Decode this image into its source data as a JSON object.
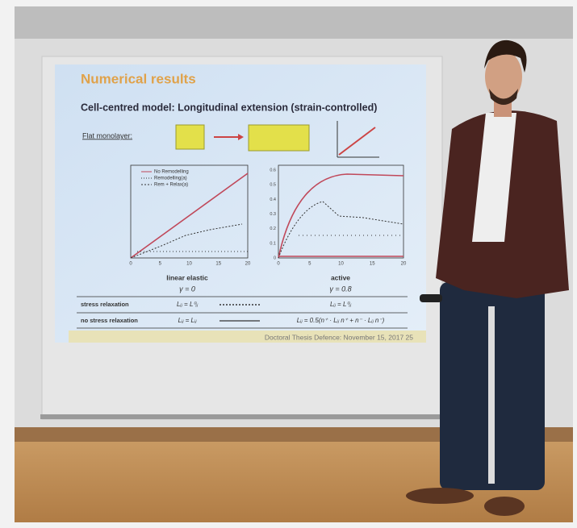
{
  "slide": {
    "title": "Numerical results",
    "subtitle": "Cell-centred model: Longitudinal extension (strain-controlled)",
    "monolayer_label": "Flat monolayer:",
    "plots": [
      {
        "label": "linear elastic",
        "gamma": "γ = 0",
        "xticks": [
          "0",
          "5",
          "10",
          "15",
          "20"
        ],
        "legend": [
          "No Remodelling",
          "Remodelling(a)",
          "Rem + Relax(a)"
        ]
      },
      {
        "label": "active",
        "gamma": "γ = 0.8",
        "xticks": [
          "0",
          "5",
          "10",
          "15",
          "20"
        ],
        "yticks": [
          "0",
          "0.1",
          "0.2",
          "0.3",
          "0.4",
          "0.5",
          "0.6"
        ]
      }
    ],
    "rows": [
      {
        "label": "stress relaxation",
        "left": "Lᵢⱼ = L⁰ᵢⱼ",
        "right": "Lᵢⱼ = L⁰ᵢⱼ"
      },
      {
        "label": "no stress relaxation",
        "left": "Lᵢⱼ = Lᵢⱼ",
        "right": "Lᵢⱼ = 0.5(n⁺ · Lᵢⱼ n⁺ + n⁻ · Lᵢⱼ n⁻)"
      }
    ],
    "footer": "Doctoral Thesis Defence: November 15, 2017  25"
  }
}
